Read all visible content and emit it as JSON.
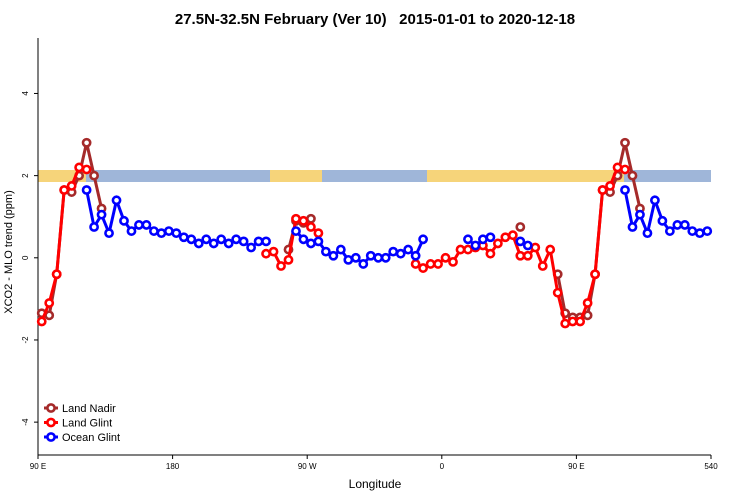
{
  "chart_data": {
    "type": "line",
    "title": "27.5N-32.5N February (Ver 10)   2015-01-01 to 2020-12-18",
    "xlabel": "Longitude",
    "ylabel": "XCO2 - MLO trend (ppm)",
    "xlim": [
      90,
      540
    ],
    "ylim": [
      -4.8,
      5.35
    ],
    "xticks": [
      {
        "value": 90,
        "label": "90 E"
      },
      180,
      {
        "value": 270,
        "label": "90 W"
      },
      {
        "value": 360,
        "label": "0"
      },
      {
        "value": 450,
        "label": "90 E"
      },
      540
    ],
    "yticks": [
      -4,
      -2,
      0,
      2,
      4
    ],
    "legend": "bottomleft",
    "x": [
      92.5,
      97.5,
      102.5,
      107.5,
      112.5,
      117.5,
      122.5,
      127.5,
      132.5,
      137.5,
      142.5,
      147.5,
      152.5,
      157.5,
      162.5,
      167.5,
      172.5,
      177.5,
      182.5,
      187.5,
      192.5,
      197.5,
      202.5,
      207.5,
      212.5,
      217.5,
      222.5,
      227.5,
      232.5,
      237.5,
      242.5,
      247.5,
      252.5,
      257.5,
      262.5,
      267.5,
      272.5,
      277.5,
      282.5,
      287.5,
      292.5,
      297.5,
      302.5,
      307.5,
      312.5,
      317.5,
      322.5,
      327.5,
      332.5,
      337.5,
      342.5,
      347.5,
      352.5,
      357.5,
      362.5,
      367.5,
      372.5,
      377.5,
      382.5,
      387.5,
      392.5,
      397.5,
      402.5,
      407.5,
      412.5,
      417.5,
      422.5,
      427.5,
      432.5,
      437.5,
      442.5,
      447.5,
      452.5,
      457.5,
      462.5,
      467.5,
      472.5,
      477.5,
      482.5,
      487.5,
      492.5,
      497.5,
      502.5,
      507.5,
      512.5,
      517.5,
      522.5,
      527.5,
      532.5,
      537.5
    ],
    "series": [
      {
        "name": "Land Nadir",
        "color": "#a52a2a",
        "values": [
          -1.35,
          -1.4,
          -0.4,
          1.65,
          1.6,
          2.0,
          2.8,
          2.0,
          1.2,
          null,
          null,
          null,
          null,
          null,
          null,
          null,
          null,
          null,
          null,
          null,
          null,
          null,
          null,
          null,
          null,
          null,
          null,
          null,
          null,
          null,
          null,
          null,
          null,
          0.2,
          0.9,
          0.85,
          0.95,
          null,
          null,
          null,
          null,
          null,
          null,
          null,
          null,
          null,
          null,
          null,
          null,
          null,
          null,
          null,
          null,
          null,
          null,
          null,
          null,
          null,
          null,
          null,
          null,
          null,
          null,
          null,
          0.75,
          null,
          null,
          null,
          null,
          -0.4,
          -1.35,
          -1.45,
          -1.45,
          -1.4,
          -0.4,
          1.65,
          1.6,
          2.0,
          2.8,
          2.0,
          1.2,
          null,
          null,
          null,
          null,
          null,
          null,
          null,
          null,
          null
        ]
      },
      {
        "name": "Land Glint",
        "color": "#ff0000",
        "values": [
          -1.55,
          -1.1,
          -0.4,
          1.65,
          1.75,
          2.2,
          2.15,
          null,
          null,
          null,
          null,
          null,
          null,
          null,
          null,
          null,
          null,
          null,
          null,
          null,
          null,
          null,
          null,
          null,
          null,
          null,
          null,
          null,
          null,
          null,
          0.1,
          0.15,
          -0.2,
          -0.05,
          0.95,
          0.9,
          0.75,
          0.6,
          null,
          null,
          null,
          null,
          null,
          null,
          null,
          null,
          null,
          null,
          null,
          null,
          -0.15,
          -0.25,
          -0.15,
          -0.15,
          0.0,
          -0.1,
          0.2,
          0.2,
          0.25,
          0.3,
          0.1,
          0.35,
          0.5,
          0.55,
          0.05,
          0.05,
          0.25,
          -0.2,
          0.2,
          -0.85,
          -1.6,
          -1.55,
          -1.55,
          -1.1,
          -0.4,
          1.65,
          1.75,
          2.2,
          2.15,
          null,
          null,
          null,
          null,
          null,
          null,
          null,
          null,
          null,
          null,
          null
        ]
      },
      {
        "name": "Ocean Glint",
        "color": "#0000ff",
        "values": [
          null,
          null,
          null,
          null,
          null,
          null,
          1.65,
          0.75,
          1.05,
          0.6,
          1.4,
          0.9,
          0.65,
          0.8,
          0.8,
          0.65,
          0.6,
          0.65,
          0.6,
          0.5,
          0.45,
          0.35,
          0.45,
          0.35,
          0.45,
          0.35,
          0.45,
          0.4,
          0.25,
          0.4,
          0.4,
          null,
          null,
          null,
          0.65,
          0.45,
          0.35,
          0.4,
          0.15,
          0.05,
          0.2,
          -0.05,
          0.0,
          -0.15,
          0.05,
          0.0,
          0.0,
          0.15,
          0.1,
          0.2,
          0.05,
          0.45,
          null,
          null,
          null,
          null,
          null,
          0.45,
          0.3,
          0.45,
          0.5,
          null,
          null,
          null,
          0.4,
          0.3,
          null,
          null,
          null,
          null,
          null,
          null,
          null,
          null,
          null,
          null,
          null,
          null,
          1.65,
          0.75,
          1.05,
          0.6,
          1.4,
          0.9,
          0.65,
          0.8,
          0.8,
          0.65,
          0.6,
          0.65
        ]
      }
    ]
  }
}
